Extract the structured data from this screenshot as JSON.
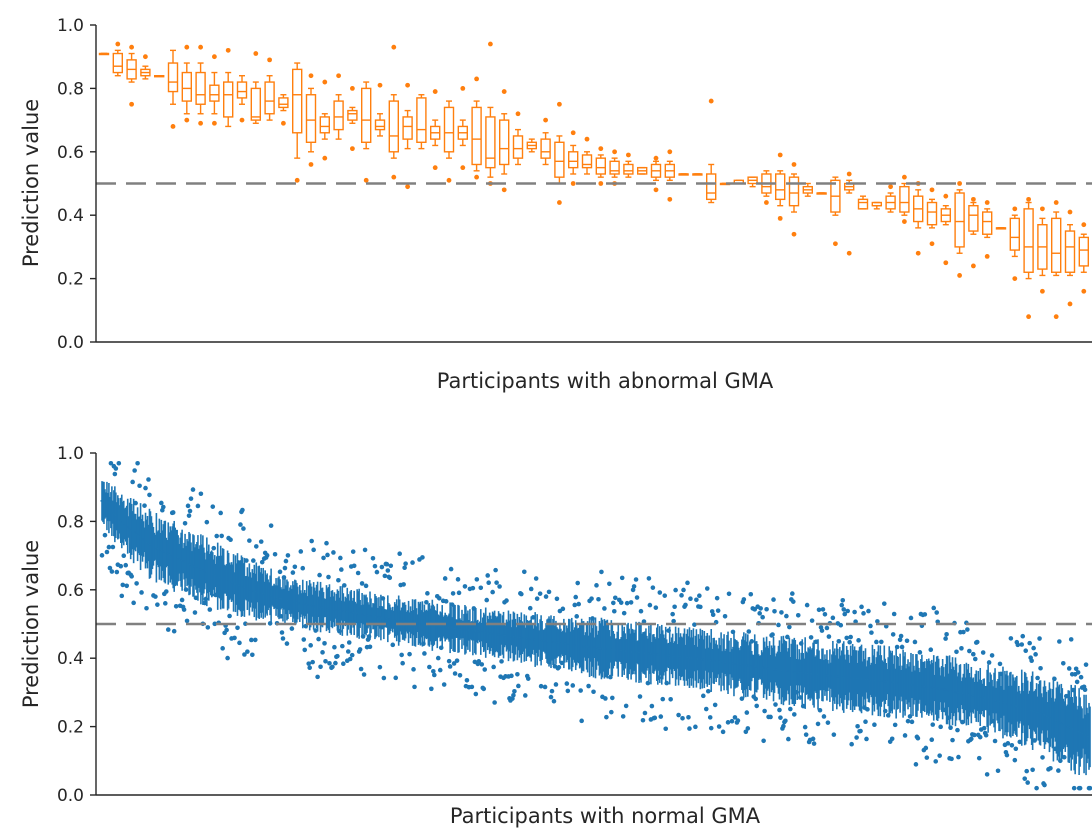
{
  "colors": {
    "abnormal": "#ff7f0e",
    "normal": "#1f77b4",
    "threshold_line": "#808080",
    "axis": "#262626"
  },
  "chart_data": [
    {
      "type": "box",
      "xlabel": "Participants with abnormal GMA",
      "ylabel": "Prediction value",
      "ylim": [
        0.0,
        1.0
      ],
      "yticks": [
        "0.0",
        "0.2",
        "0.4",
        "0.6",
        "0.8",
        "1.0"
      ],
      "threshold": 0.5,
      "grid": false,
      "color": "#ff7f0e",
      "boxes": [
        {
          "q1": 0.91,
          "med": 0.91,
          "q3": 0.91,
          "lo": 0.91,
          "hi": 0.91,
          "out": []
        },
        {
          "q1": 0.85,
          "med": 0.87,
          "q3": 0.91,
          "lo": 0.84,
          "hi": 0.92,
          "out": [
            0.94
          ]
        },
        {
          "q1": 0.83,
          "med": 0.86,
          "q3": 0.89,
          "lo": 0.82,
          "hi": 0.91,
          "out": [
            0.93,
            0.75
          ]
        },
        {
          "q1": 0.84,
          "med": 0.85,
          "q3": 0.86,
          "lo": 0.83,
          "hi": 0.87,
          "out": [
            0.9
          ]
        },
        {
          "q1": 0.84,
          "med": 0.84,
          "q3": 0.84,
          "lo": 0.84,
          "hi": 0.84,
          "out": []
        },
        {
          "q1": 0.79,
          "med": 0.82,
          "q3": 0.88,
          "lo": 0.75,
          "hi": 0.92,
          "out": [
            0.68
          ]
        },
        {
          "q1": 0.76,
          "med": 0.8,
          "q3": 0.85,
          "lo": 0.72,
          "hi": 0.88,
          "out": [
            0.93,
            0.7
          ]
        },
        {
          "q1": 0.75,
          "med": 0.78,
          "q3": 0.85,
          "lo": 0.72,
          "hi": 0.88,
          "out": [
            0.93,
            0.69
          ]
        },
        {
          "q1": 0.76,
          "med": 0.78,
          "q3": 0.81,
          "lo": 0.72,
          "hi": 0.85,
          "out": [
            0.9,
            0.69
          ]
        },
        {
          "q1": 0.71,
          "med": 0.78,
          "q3": 0.82,
          "lo": 0.68,
          "hi": 0.85,
          "out": [
            0.92
          ]
        },
        {
          "q1": 0.77,
          "med": 0.79,
          "q3": 0.82,
          "lo": 0.75,
          "hi": 0.84,
          "out": [
            0.7
          ]
        },
        {
          "q1": 0.7,
          "med": 0.71,
          "q3": 0.8,
          "lo": 0.69,
          "hi": 0.82,
          "out": [
            0.91
          ]
        },
        {
          "q1": 0.72,
          "med": 0.76,
          "q3": 0.82,
          "lo": 0.7,
          "hi": 0.84,
          "out": [
            0.89
          ]
        },
        {
          "q1": 0.74,
          "med": 0.75,
          "q3": 0.77,
          "lo": 0.73,
          "hi": 0.78,
          "out": [
            0.69
          ]
        },
        {
          "q1": 0.66,
          "med": 0.78,
          "q3": 0.86,
          "lo": 0.58,
          "hi": 0.88,
          "out": [
            0.51
          ]
        },
        {
          "q1": 0.63,
          "med": 0.7,
          "q3": 0.78,
          "lo": 0.6,
          "hi": 0.8,
          "out": [
            0.84,
            0.56
          ]
        },
        {
          "q1": 0.66,
          "med": 0.68,
          "q3": 0.71,
          "lo": 0.64,
          "hi": 0.72,
          "out": [
            0.82,
            0.58
          ]
        },
        {
          "q1": 0.67,
          "med": 0.71,
          "q3": 0.76,
          "lo": 0.64,
          "hi": 0.78,
          "out": [
            0.84
          ]
        },
        {
          "q1": 0.7,
          "med": 0.72,
          "q3": 0.73,
          "lo": 0.69,
          "hi": 0.74,
          "out": [
            0.8,
            0.61
          ]
        },
        {
          "q1": 0.63,
          "med": 0.7,
          "q3": 0.8,
          "lo": 0.61,
          "hi": 0.82,
          "out": [
            0.51
          ]
        },
        {
          "q1": 0.67,
          "med": 0.68,
          "q3": 0.7,
          "lo": 0.65,
          "hi": 0.72,
          "out": [
            0.81
          ]
        },
        {
          "q1": 0.6,
          "med": 0.65,
          "q3": 0.76,
          "lo": 0.58,
          "hi": 0.78,
          "out": [
            0.93,
            0.52
          ]
        },
        {
          "q1": 0.64,
          "med": 0.68,
          "q3": 0.71,
          "lo": 0.61,
          "hi": 0.73,
          "out": [
            0.81,
            0.49
          ]
        },
        {
          "q1": 0.63,
          "med": 0.67,
          "q3": 0.77,
          "lo": 0.61,
          "hi": 0.78,
          "out": []
        },
        {
          "q1": 0.64,
          "med": 0.66,
          "q3": 0.68,
          "lo": 0.62,
          "hi": 0.7,
          "out": [
            0.79,
            0.55
          ]
        },
        {
          "q1": 0.6,
          "med": 0.66,
          "q3": 0.74,
          "lo": 0.58,
          "hi": 0.76,
          "out": [
            0.51
          ]
        },
        {
          "q1": 0.64,
          "med": 0.66,
          "q3": 0.68,
          "lo": 0.62,
          "hi": 0.7,
          "out": [
            0.8,
            0.55
          ]
        },
        {
          "q1": 0.56,
          "med": 0.64,
          "q3": 0.74,
          "lo": 0.54,
          "hi": 0.76,
          "out": [
            0.83,
            0.52
          ]
        },
        {
          "q1": 0.55,
          "med": 0.58,
          "q3": 0.71,
          "lo": 0.52,
          "hi": 0.74,
          "out": [
            0.94,
            0.5
          ]
        },
        {
          "q1": 0.56,
          "med": 0.61,
          "q3": 0.7,
          "lo": 0.53,
          "hi": 0.72,
          "out": [
            0.79,
            0.48
          ]
        },
        {
          "q1": 0.58,
          "med": 0.61,
          "q3": 0.65,
          "lo": 0.56,
          "hi": 0.67,
          "out": [
            0.72
          ]
        },
        {
          "q1": 0.61,
          "med": 0.62,
          "q3": 0.63,
          "lo": 0.6,
          "hi": 0.64,
          "out": []
        },
        {
          "q1": 0.58,
          "med": 0.6,
          "q3": 0.64,
          "lo": 0.56,
          "hi": 0.66,
          "out": [
            0.7
          ]
        },
        {
          "q1": 0.52,
          "med": 0.57,
          "q3": 0.63,
          "lo": 0.5,
          "hi": 0.65,
          "out": [
            0.75,
            0.44
          ]
        },
        {
          "q1": 0.55,
          "med": 0.57,
          "q3": 0.6,
          "lo": 0.53,
          "hi": 0.62,
          "out": [
            0.66,
            0.5
          ]
        },
        {
          "q1": 0.55,
          "med": 0.56,
          "q3": 0.59,
          "lo": 0.53,
          "hi": 0.6,
          "out": [
            0.64
          ]
        },
        {
          "q1": 0.53,
          "med": 0.55,
          "q3": 0.58,
          "lo": 0.52,
          "hi": 0.59,
          "out": [
            0.61,
            0.5
          ]
        },
        {
          "q1": 0.53,
          "med": 0.54,
          "q3": 0.57,
          "lo": 0.52,
          "hi": 0.58,
          "out": [
            0.6,
            0.5
          ]
        },
        {
          "q1": 0.53,
          "med": 0.54,
          "q3": 0.56,
          "lo": 0.52,
          "hi": 0.57,
          "out": [
            0.59
          ]
        },
        {
          "q1": 0.53,
          "med": 0.54,
          "q3": 0.55,
          "lo": 0.53,
          "hi": 0.55,
          "out": []
        },
        {
          "q1": 0.52,
          "med": 0.54,
          "q3": 0.56,
          "lo": 0.51,
          "hi": 0.57,
          "out": [
            0.58,
            0.48
          ]
        },
        {
          "q1": 0.52,
          "med": 0.54,
          "q3": 0.56,
          "lo": 0.51,
          "hi": 0.57,
          "out": [
            0.6,
            0.45
          ]
        },
        {
          "q1": 0.53,
          "med": 0.53,
          "q3": 0.53,
          "lo": 0.53,
          "hi": 0.53,
          "out": []
        },
        {
          "q1": 0.53,
          "med": 0.53,
          "q3": 0.53,
          "lo": 0.53,
          "hi": 0.53,
          "out": []
        },
        {
          "q1": 0.45,
          "med": 0.47,
          "q3": 0.53,
          "lo": 0.44,
          "hi": 0.56,
          "out": [
            0.76
          ]
        },
        {
          "q1": 0.5,
          "med": 0.5,
          "q3": 0.5,
          "lo": 0.5,
          "hi": 0.5,
          "out": []
        },
        {
          "q1": 0.5,
          "med": 0.5,
          "q3": 0.51,
          "lo": 0.5,
          "hi": 0.51,
          "out": []
        },
        {
          "q1": 0.5,
          "med": 0.51,
          "q3": 0.52,
          "lo": 0.49,
          "hi": 0.52,
          "out": []
        },
        {
          "q1": 0.47,
          "med": 0.49,
          "q3": 0.53,
          "lo": 0.46,
          "hi": 0.54,
          "out": [
            0.44
          ]
        },
        {
          "q1": 0.45,
          "med": 0.48,
          "q3": 0.53,
          "lo": 0.43,
          "hi": 0.54,
          "out": [
            0.59,
            0.39
          ]
        },
        {
          "q1": 0.43,
          "med": 0.47,
          "q3": 0.52,
          "lo": 0.41,
          "hi": 0.53,
          "out": [
            0.56,
            0.34
          ]
        },
        {
          "q1": 0.47,
          "med": 0.48,
          "q3": 0.49,
          "lo": 0.46,
          "hi": 0.5,
          "out": []
        },
        {
          "q1": 0.47,
          "med": 0.47,
          "q3": 0.47,
          "lo": 0.47,
          "hi": 0.47,
          "out": []
        },
        {
          "q1": 0.41,
          "med": 0.46,
          "q3": 0.51,
          "lo": 0.4,
          "hi": 0.52,
          "out": [
            0.31
          ]
        },
        {
          "q1": 0.48,
          "med": 0.49,
          "q3": 0.5,
          "lo": 0.47,
          "hi": 0.51,
          "out": [
            0.53,
            0.28
          ]
        },
        {
          "q1": 0.42,
          "med": 0.44,
          "q3": 0.45,
          "lo": 0.42,
          "hi": 0.46,
          "out": []
        },
        {
          "q1": 0.43,
          "med": 0.43,
          "q3": 0.44,
          "lo": 0.42,
          "hi": 0.44,
          "out": []
        },
        {
          "q1": 0.42,
          "med": 0.44,
          "q3": 0.46,
          "lo": 0.41,
          "hi": 0.47,
          "out": [
            0.49
          ]
        },
        {
          "q1": 0.41,
          "med": 0.44,
          "q3": 0.49,
          "lo": 0.4,
          "hi": 0.5,
          "out": [
            0.52,
            0.38
          ]
        },
        {
          "q1": 0.38,
          "med": 0.42,
          "q3": 0.46,
          "lo": 0.36,
          "hi": 0.48,
          "out": [
            0.5,
            0.28
          ]
        },
        {
          "q1": 0.37,
          "med": 0.41,
          "q3": 0.44,
          "lo": 0.36,
          "hi": 0.45,
          "out": [
            0.48,
            0.31
          ]
        },
        {
          "q1": 0.38,
          "med": 0.4,
          "q3": 0.42,
          "lo": 0.37,
          "hi": 0.43,
          "out": [
            0.46,
            0.25
          ]
        },
        {
          "q1": 0.3,
          "med": 0.38,
          "q3": 0.47,
          "lo": 0.28,
          "hi": 0.48,
          "out": [
            0.5,
            0.21
          ]
        },
        {
          "q1": 0.35,
          "med": 0.4,
          "q3": 0.43,
          "lo": 0.34,
          "hi": 0.44,
          "out": [
            0.45,
            0.24
          ]
        },
        {
          "q1": 0.34,
          "med": 0.38,
          "q3": 0.41,
          "lo": 0.33,
          "hi": 0.42,
          "out": [
            0.44,
            0.27
          ]
        },
        {
          "q1": 0.36,
          "med": 0.36,
          "q3": 0.36,
          "lo": 0.36,
          "hi": 0.36,
          "out": []
        },
        {
          "q1": 0.29,
          "med": 0.33,
          "q3": 0.39,
          "lo": 0.27,
          "hi": 0.4,
          "out": [
            0.42,
            0.2
          ]
        },
        {
          "q1": 0.22,
          "med": 0.3,
          "q3": 0.42,
          "lo": 0.2,
          "hi": 0.44,
          "out": [
            0.45,
            0.08
          ]
        },
        {
          "q1": 0.23,
          "med": 0.3,
          "q3": 0.37,
          "lo": 0.21,
          "hi": 0.39,
          "out": [
            0.42,
            0.16
          ]
        },
        {
          "q1": 0.22,
          "med": 0.28,
          "q3": 0.39,
          "lo": 0.21,
          "hi": 0.41,
          "out": [
            0.44,
            0.08
          ]
        },
        {
          "q1": 0.22,
          "med": 0.3,
          "q3": 0.35,
          "lo": 0.21,
          "hi": 0.37,
          "out": [
            0.41,
            0.12
          ]
        },
        {
          "q1": 0.24,
          "med": 0.29,
          "q3": 0.33,
          "lo": 0.22,
          "hi": 0.34,
          "out": [
            0.37,
            0.16
          ]
        },
        {
          "q1": 0.11,
          "med": 0.15,
          "q3": 0.28,
          "lo": 0.09,
          "hi": 0.3,
          "out": [
            0.44,
            0.08
          ]
        },
        {
          "q1": 0.17,
          "med": 0.2,
          "q3": 0.25,
          "lo": 0.15,
          "hi": 0.26,
          "out": [
            0.32,
            0.09
          ]
        }
      ]
    },
    {
      "type": "box",
      "xlabel": "Participants with normal GMA",
      "ylabel": "Prediction value",
      "ylim": [
        0.0,
        1.0
      ],
      "yticks": [
        "0.0",
        "0.2",
        "0.4",
        "0.6",
        "0.8",
        "1.0"
      ],
      "threshold": 0.5,
      "grid": false,
      "color": "#1f77b4",
      "trend": {
        "count": 1000,
        "x": [
          0.0,
          0.02,
          0.05,
          0.1,
          0.15,
          0.2,
          0.3,
          0.4,
          0.5,
          0.6,
          0.7,
          0.8,
          0.85,
          0.9,
          0.95,
          1.0
        ],
        "median": [
          0.86,
          0.8,
          0.73,
          0.66,
          0.6,
          0.56,
          0.51,
          0.47,
          0.43,
          0.4,
          0.36,
          0.33,
          0.31,
          0.28,
          0.24,
          0.17
        ],
        "spread": [
          0.05,
          0.06,
          0.07,
          0.07,
          0.06,
          0.05,
          0.05,
          0.05,
          0.06,
          0.06,
          0.07,
          0.07,
          0.07,
          0.07,
          0.08,
          0.09
        ],
        "outlier_range": [
          0.02,
          0.97
        ]
      }
    }
  ]
}
